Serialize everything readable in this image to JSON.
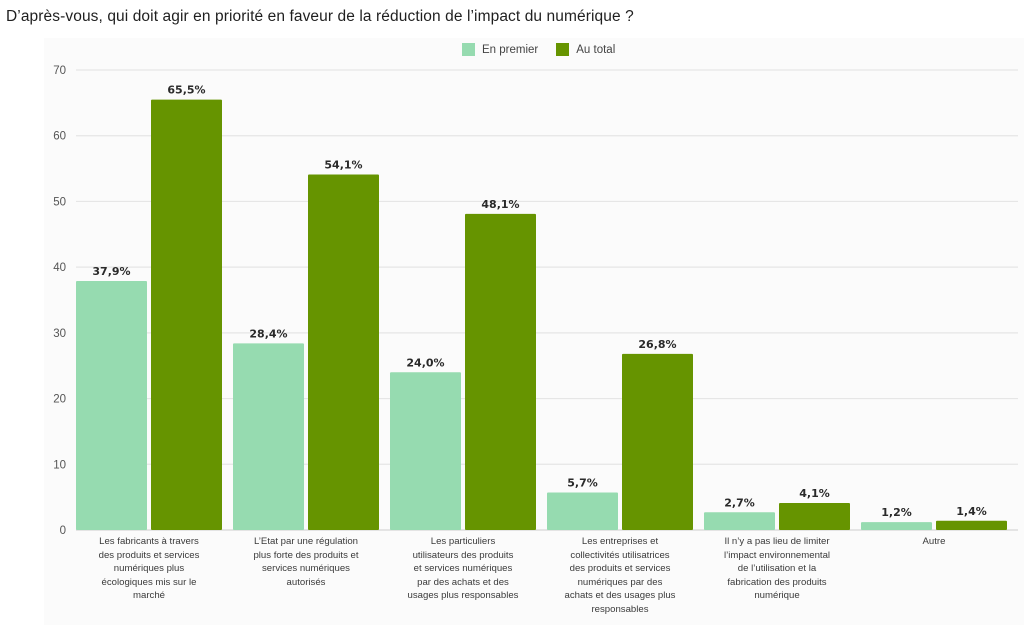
{
  "title": "D’après-vous, qui doit agir en priorité en faveur de la réduction de l’impact du numérique ?",
  "chart_data": {
    "type": "bar",
    "title": "D’après-vous, qui doit agir en priorité en faveur de la réduction de l’impact du numérique ?",
    "xlabel": "",
    "ylabel": "",
    "ylim": [
      0,
      70
    ],
    "yticks": [
      0,
      10,
      20,
      30,
      40,
      50,
      60,
      70
    ],
    "grid": true,
    "legend_position": "top-center",
    "categories": [
      "Les fabricants à travers des produits et services numériques plus écologiques mis sur le marché",
      "L’Etat par une régulation plus forte des produits et services numériques autorisés",
      "Les particuliers utilisateurs des produits et services numériques par des achats et des usages plus responsables",
      "Les entreprises et collectivités utilisatrices des produits et services numériques par des achats et des usages plus responsables",
      "Il n’y a pas lieu de limiter l’impact environnemental de l’utilisation et la fabrication des produits numérique",
      "Autre"
    ],
    "category_label_lines": [
      [
        "Les fabricants à travers",
        "des produits et services",
        "numériques plus",
        "écologiques mis sur le",
        "marché"
      ],
      [
        "L’Etat par une régulation",
        "plus forte des produits et",
        "services numériques",
        "autorisés"
      ],
      [
        "Les particuliers",
        "utilisateurs des produits",
        "et services numériques",
        "par des achats et des",
        "usages plus responsables"
      ],
      [
        "Les entreprises et",
        "collectivités utilisatrices",
        "des produits et services",
        "numériques par des",
        "achats et des usages plus",
        "responsables"
      ],
      [
        "Il n’y a pas lieu de limiter",
        "l’impact environnemental",
        "de l’utilisation et la",
        "fabrication des produits",
        "numérique"
      ],
      [
        "Autre"
      ]
    ],
    "series": [
      {
        "name": "En premier",
        "color": "#96dbb0",
        "values": [
          37.9,
          28.4,
          24.0,
          5.7,
          2.7,
          1.2
        ],
        "labels": [
          "37,9%",
          "28,4%",
          "24,0%",
          "5,7%",
          "2,7%",
          "1,2%"
        ]
      },
      {
        "name": "Au total",
        "color": "#669400",
        "values": [
          65.5,
          54.1,
          48.1,
          26.8,
          4.1,
          1.4
        ],
        "labels": [
          "65,5%",
          "54,1%",
          "48,1%",
          "26,8%",
          "4,1%",
          "1,4%"
        ]
      }
    ]
  }
}
